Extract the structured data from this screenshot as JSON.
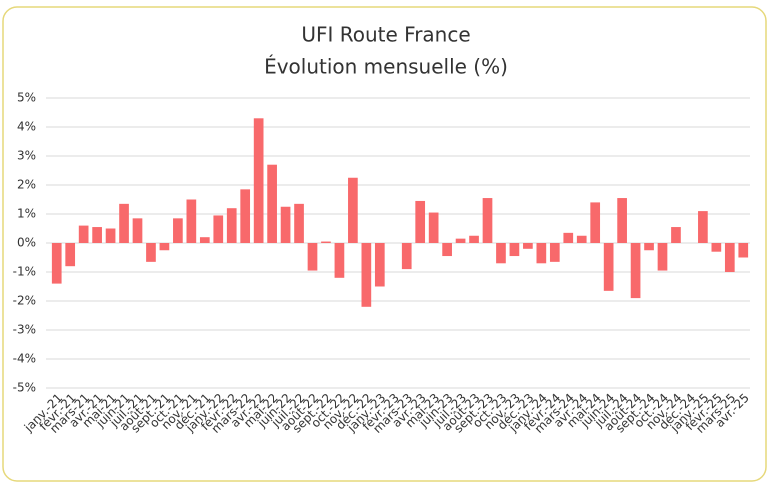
{
  "chart_data": {
    "type": "bar",
    "title": "UFI Route France",
    "subtitle": "Évolution mensuelle (%)",
    "categories": [
      "janv.-21",
      "févr.-21",
      "mars-21",
      "avr.-21",
      "mai-21",
      "juin-21",
      "juil.-21",
      "août-21",
      "sept.-21",
      "oct.-21",
      "nov.-21",
      "déc.-21",
      "janv.-22",
      "févr.-22",
      "mars-22",
      "avr.-22",
      "mai-22",
      "juin-22",
      "juil.-22",
      "août-22",
      "sept.-22",
      "oct.-22",
      "nov.-22",
      "déc.-22",
      "janv.-23",
      "févr.-23",
      "mars-23",
      "avr.-23",
      "mai-23",
      "juin-23",
      "juil.-23",
      "août-23",
      "sept.-23",
      "oct.-23",
      "nov.-23",
      "déc.-23",
      "janv.-24",
      "févr.-24",
      "mars-24",
      "avr.-24",
      "mai-24",
      "juin-24",
      "juil.-24",
      "août-24",
      "sept.-24",
      "oct.-24",
      "nov.-24",
      "déc.-24",
      "janv.-25",
      "févr.-25",
      "mars-25",
      "avr.-25"
    ],
    "values": [
      -1.4,
      -0.8,
      0.6,
      0.55,
      0.5,
      1.35,
      0.85,
      -0.65,
      -0.25,
      0.85,
      1.5,
      0.2,
      0.95,
      1.2,
      1.85,
      4.3,
      2.7,
      1.25,
      1.35,
      -0.95,
      0.05,
      -1.2,
      2.25,
      -2.2,
      -1.5,
      0,
      -0.9,
      1.45,
      1.05,
      -0.45,
      0.15,
      0.25,
      1.55,
      -0.7,
      -0.45,
      -0.2,
      -0.7,
      -0.65,
      0.35,
      0.25,
      1.4,
      -1.65,
      1.55,
      -1.9,
      -0.25,
      -0.95,
      0.55,
      0,
      1.1,
      -0.3,
      -1.0,
      -0.5
    ],
    "color": "#f8696b",
    "ylim": [
      -5,
      5
    ],
    "yticks": [
      {
        "value": -5,
        "label": "-5%"
      },
      {
        "value": -4,
        "label": "-4%"
      },
      {
        "value": -3,
        "label": "-3%"
      },
      {
        "value": -2,
        "label": "-2%"
      },
      {
        "value": -1,
        "label": "-1%"
      },
      {
        "value": 0,
        "label": "0%"
      },
      {
        "value": 1,
        "label": "1%"
      },
      {
        "value": 2,
        "label": "2%"
      },
      {
        "value": 3,
        "label": "3%"
      },
      {
        "value": 4,
        "label": "4%"
      },
      {
        "value": 5,
        "label": "5%"
      }
    ],
    "grid": true
  }
}
